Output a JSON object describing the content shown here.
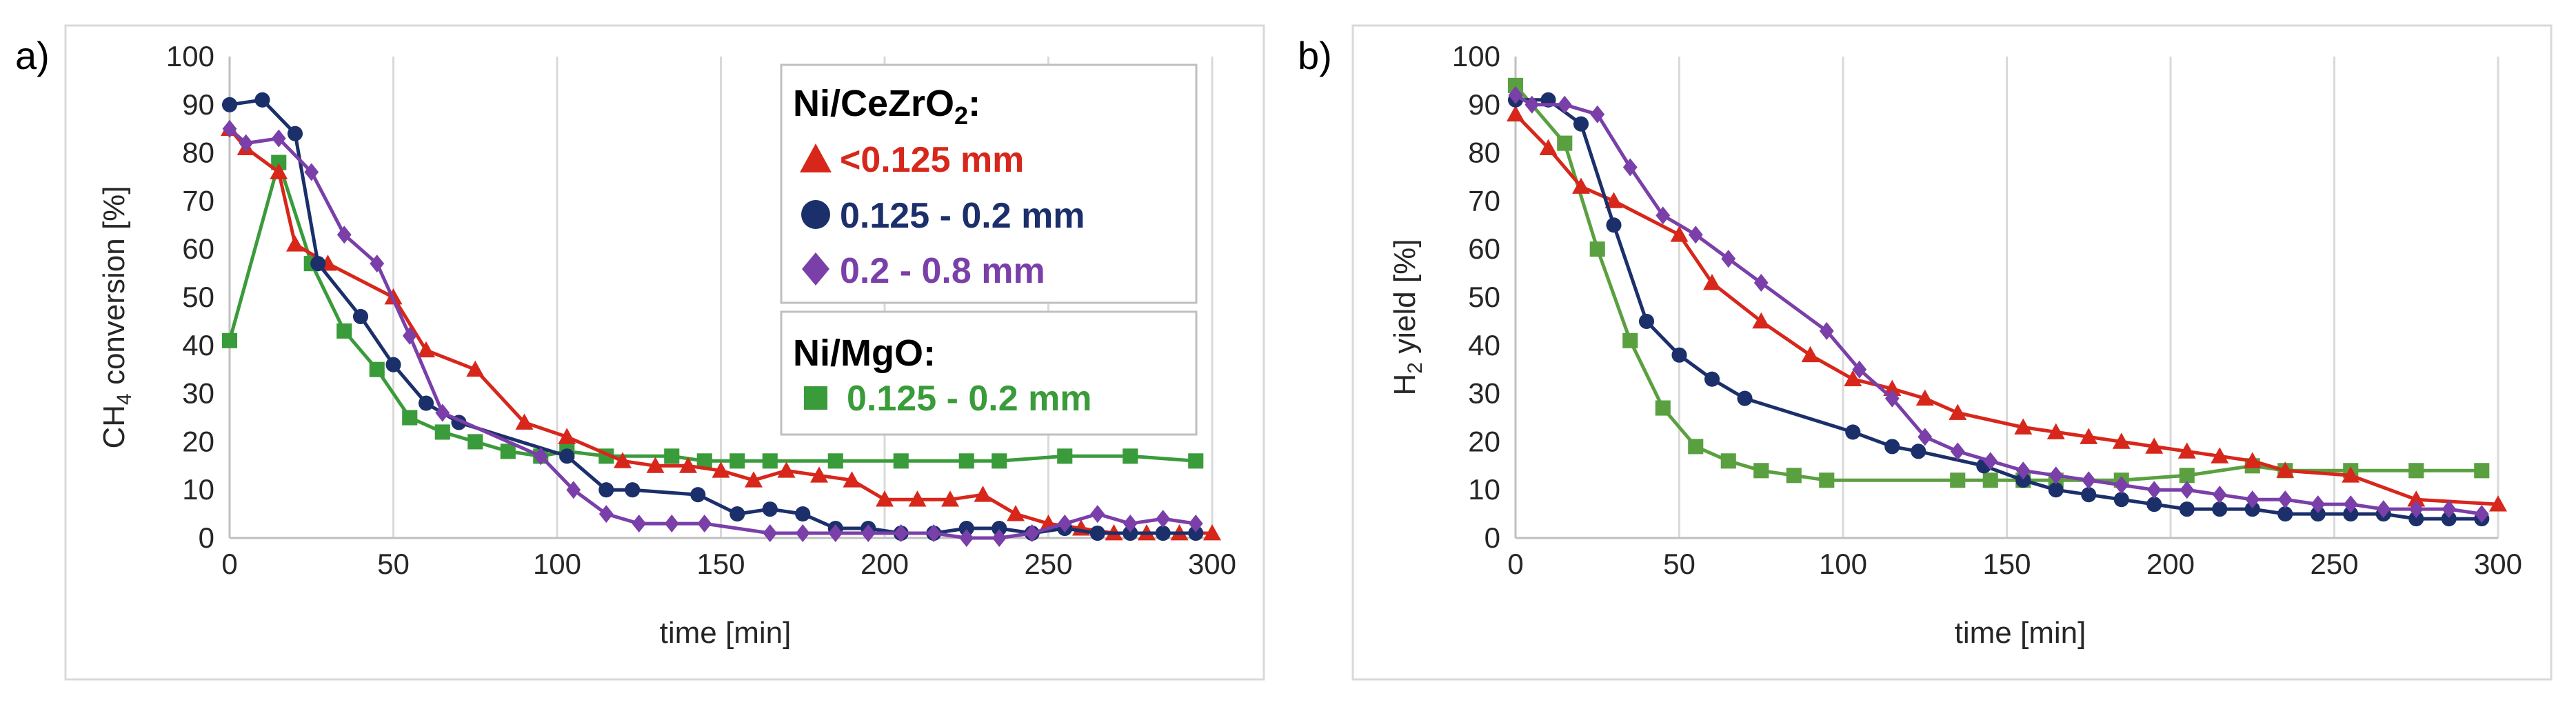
{
  "chart_data": [
    {
      "type": "line",
      "panel_label": "a)",
      "xlabel": "time [min]",
      "ylabel_main": "CH",
      "ylabel_sub": "4",
      "ylabel_tail": " conversion [%]",
      "xlim": [
        0,
        300
      ],
      "ylim": [
        0,
        100
      ],
      "xticks": [
        "0",
        "50",
        "100",
        "150",
        "200",
        "250",
        "300"
      ],
      "yticks": [
        "0",
        "10",
        "20",
        "30",
        "40",
        "50",
        "60",
        "70",
        "80",
        "90",
        "100"
      ],
      "grid": "vertical",
      "legend": {
        "group1_head": "Ni/CeZrO",
        "group1_sub": "2",
        "group1_tail": ":",
        "group2_head": "Ni/MgO:"
      },
      "series": [
        {
          "name": "<0.125 mm",
          "marker": "triangle",
          "color": "#d7271b",
          "x": [
            0,
            5,
            15,
            20,
            30,
            50,
            60,
            75,
            90,
            103,
            120,
            130,
            140,
            150,
            160,
            170,
            180,
            190,
            200,
            210,
            220,
            230,
            240,
            250,
            260,
            270,
            280,
            290,
            300
          ],
          "y": [
            85,
            81,
            76,
            61,
            57,
            50,
            39,
            35,
            24,
            21,
            16,
            15,
            15,
            14,
            12,
            14,
            13,
            12,
            8,
            8,
            8,
            9,
            5,
            3,
            2,
            1,
            1,
            1,
            1
          ]
        },
        {
          "name": "0.125 - 0.2 mm",
          "marker": "circle",
          "color": "#1b2f6b",
          "x": [
            0,
            10,
            20,
            27,
            40,
            50,
            60,
            70,
            103,
            115,
            123,
            143,
            155,
            165,
            175,
            185,
            195,
            205,
            215,
            225,
            235,
            245,
            255,
            265,
            275,
            285,
            295
          ],
          "y": [
            90,
            91,
            84,
            57,
            46,
            36,
            28,
            24,
            17,
            10,
            10,
            9,
            5,
            6,
            5,
            2,
            2,
            1,
            1,
            2,
            2,
            1,
            2,
            1,
            1,
            1,
            1
          ]
        },
        {
          "name": "0.2 - 0.8 mm",
          "marker": "diamond",
          "color": "#7a3fa8",
          "x": [
            0,
            5,
            15,
            25,
            35,
            45,
            55,
            65,
            95,
            105,
            115,
            125,
            135,
            145,
            165,
            175,
            185,
            195,
            205,
            215,
            225,
            235,
            245,
            255,
            265,
            275,
            285,
            295
          ],
          "y": [
            85,
            82,
            83,
            76,
            63,
            57,
            42,
            26,
            17,
            10,
            5,
            3,
            3,
            3,
            1,
            1,
            1,
            1,
            1,
            1,
            0,
            0,
            1,
            3,
            5,
            3,
            4,
            3
          ]
        },
        {
          "name": "0.125 - 0.2 mm",
          "marker": "square",
          "color": "#3a9b3a",
          "x": [
            0,
            15,
            25,
            35,
            45,
            55,
            65,
            75,
            85,
            95,
            103,
            115,
            135,
            145,
            155,
            165,
            185,
            205,
            225,
            235,
            255,
            275,
            295
          ],
          "y": [
            41,
            78,
            57,
            43,
            35,
            25,
            22,
            20,
            18,
            17,
            18,
            17,
            17,
            16,
            16,
            16,
            16,
            16,
            16,
            16,
            17,
            17,
            16
          ]
        }
      ]
    },
    {
      "type": "line",
      "panel_label": "b)",
      "xlabel": "time [min]",
      "ylabel_main": "H",
      "ylabel_sub": "2",
      "ylabel_tail": " yield [%]",
      "xlim": [
        0,
        300
      ],
      "ylim": [
        0,
        100
      ],
      "xticks": [
        "0",
        "50",
        "100",
        "150",
        "200",
        "250",
        "300"
      ],
      "yticks": [
        "0",
        "10",
        "20",
        "30",
        "40",
        "50",
        "60",
        "70",
        "80",
        "90",
        "100"
      ],
      "grid": "vertical",
      "series": [
        {
          "name": "<0.125 mm",
          "marker": "triangle",
          "color": "#d7271b",
          "x": [
            0,
            10,
            20,
            30,
            50,
            60,
            75,
            90,
            103,
            115,
            125,
            135,
            155,
            165,
            175,
            185,
            195,
            205,
            215,
            225,
            235,
            255,
            275,
            300
          ],
          "y": [
            88,
            81,
            73,
            70,
            63,
            53,
            45,
            38,
            33,
            31,
            29,
            26,
            23,
            22,
            21,
            20,
            19,
            18,
            17,
            16,
            14,
            13,
            8,
            7
          ]
        },
        {
          "name": "0.125 - 0.2 mm",
          "marker": "circle",
          "color": "#1b2f6b",
          "x": [
            0,
            10,
            20,
            30,
            40,
            50,
            60,
            70,
            103,
            115,
            123,
            143,
            155,
            165,
            175,
            185,
            195,
            205,
            215,
            225,
            235,
            245,
            255,
            265,
            275,
            285,
            295
          ],
          "y": [
            91,
            91,
            86,
            65,
            45,
            38,
            33,
            29,
            22,
            19,
            18,
            15,
            12,
            10,
            9,
            8,
            7,
            6,
            6,
            6,
            5,
            5,
            5,
            5,
            4,
            4,
            4
          ]
        },
        {
          "name": "0.2 - 0.8 mm",
          "marker": "diamond",
          "color": "#7a3fa8",
          "x": [
            0,
            5,
            15,
            25,
            35,
            45,
            55,
            65,
            75,
            95,
            105,
            115,
            125,
            135,
            145,
            155,
            165,
            175,
            185,
            195,
            205,
            215,
            225,
            235,
            245,
            255,
            265,
            275,
            285,
            295
          ],
          "y": [
            92,
            90,
            90,
            88,
            77,
            67,
            63,
            58,
            53,
            43,
            35,
            29,
            21,
            18,
            16,
            14,
            13,
            12,
            11,
            10,
            10,
            9,
            8,
            8,
            7,
            7,
            6,
            6,
            6,
            5
          ]
        },
        {
          "name": "0.125 - 0.2 mm",
          "marker": "square",
          "color": "#5aa040",
          "x": [
            0,
            15,
            25,
            35,
            45,
            55,
            65,
            75,
            85,
            95,
            135,
            145,
            155,
            165,
            185,
            205,
            225,
            235,
            255,
            275,
            295
          ],
          "y": [
            94,
            82,
            60,
            41,
            27,
            19,
            16,
            14,
            13,
            12,
            12,
            12,
            12,
            12,
            12,
            13,
            15,
            14,
            14,
            14,
            14
          ]
        }
      ]
    }
  ]
}
